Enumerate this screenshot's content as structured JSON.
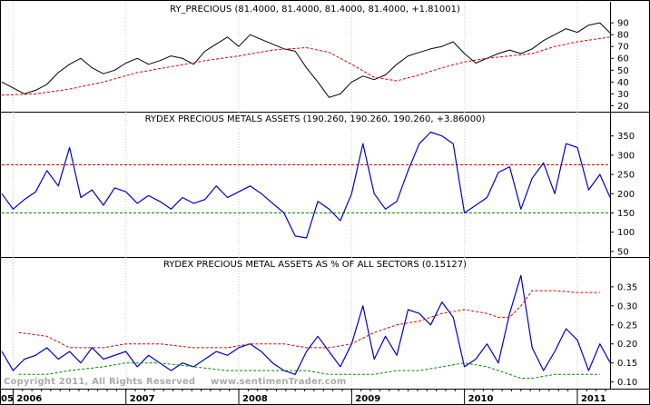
{
  "copyright": "Copyright 2011, All Rights Reserved",
  "watermark": "www.sentimenTrader.com",
  "colors": {
    "series": "#0000cc",
    "price": "#000000",
    "upper_band": "#dd0000",
    "lower_band": "#008800",
    "grid": "#cccccc",
    "frame": "#000000"
  },
  "chart_data": [
    {
      "type": "line",
      "title": "RY_PRECIOUS (81.4000, 81.4000, 81.4000, 81.4000, +1.81001)",
      "xlabel": "",
      "ylabel": "",
      "x_ticks": [
        "05",
        "2006",
        "2007",
        "2008",
        "2009",
        "2010",
        "2011"
      ],
      "x_range": [
        2005.9,
        2011.29
      ],
      "ylim": [
        18,
        97
      ],
      "y_ticks": [
        20,
        30,
        40,
        50,
        60,
        70,
        80,
        90
      ],
      "series": [
        {
          "style": "price",
          "x": [
            2005.9,
            2006.0,
            2006.1,
            2006.2,
            2006.3,
            2006.4,
            2006.5,
            2006.6,
            2006.7,
            2006.8,
            2006.9,
            2007.0,
            2007.1,
            2007.2,
            2007.3,
            2007.4,
            2007.5,
            2007.6,
            2007.7,
            2007.8,
            2007.9,
            2008.0,
            2008.1,
            2008.2,
            2008.3,
            2008.4,
            2008.5,
            2008.6,
            2008.7,
            2008.8,
            2008.9,
            2009.0,
            2009.1,
            2009.2,
            2009.3,
            2009.4,
            2009.5,
            2009.6,
            2009.7,
            2009.8,
            2009.9,
            2010.0,
            2010.1,
            2010.2,
            2010.3,
            2010.4,
            2010.5,
            2010.6,
            2010.7,
            2010.8,
            2010.9,
            2011.0,
            2011.1,
            2011.2,
            2011.29
          ],
          "y": [
            40,
            35,
            30,
            33,
            38,
            48,
            55,
            60,
            52,
            47,
            50,
            56,
            60,
            55,
            58,
            62,
            60,
            55,
            66,
            72,
            78,
            70,
            80,
            76,
            72,
            68,
            66,
            52,
            40,
            27,
            30,
            40,
            45,
            42,
            46,
            55,
            62,
            65,
            68,
            70,
            74,
            64,
            56,
            60,
            64,
            67,
            64,
            68,
            75,
            80,
            85,
            82,
            88,
            90,
            81.4
          ]
        },
        {
          "style": "moving-average",
          "x": [
            2005.9,
            2006.2,
            2006.5,
            2006.8,
            2007.1,
            2007.4,
            2007.7,
            2008.0,
            2008.3,
            2008.6,
            2008.8,
            2009.0,
            2009.2,
            2009.4,
            2009.6,
            2009.8,
            2010.0,
            2010.2,
            2010.4,
            2010.6,
            2010.8,
            2011.0,
            2011.29
          ],
          "y": [
            29,
            30,
            34,
            40,
            48,
            53,
            58,
            62,
            67,
            69,
            65,
            55,
            44,
            41,
            46,
            52,
            57,
            60,
            62,
            64,
            70,
            74,
            78
          ]
        }
      ]
    },
    {
      "type": "line",
      "title": "RYDEX PRECIOUS METALS ASSETS (190.260, 190.260, 190.260, +3.86000)",
      "xlabel": "",
      "ylabel": "",
      "x_ticks": [
        "05",
        "2006",
        "2007",
        "2008",
        "2009",
        "2010",
        "2011"
      ],
      "x_range": [
        2005.9,
        2011.29
      ],
      "ylim": [
        45,
        380
      ],
      "y_ticks": [
        50,
        100,
        150,
        200,
        250,
        300,
        350
      ],
      "upper_level": 275,
      "lower_level": 150,
      "series": [
        {
          "style": "assets",
          "x": [
            2005.9,
            2006.0,
            2006.1,
            2006.2,
            2006.3,
            2006.4,
            2006.5,
            2006.6,
            2006.7,
            2006.8,
            2006.9,
            2007.0,
            2007.1,
            2007.2,
            2007.3,
            2007.4,
            2007.5,
            2007.6,
            2007.7,
            2007.8,
            2007.9,
            2008.0,
            2008.1,
            2008.2,
            2008.3,
            2008.4,
            2008.5,
            2008.6,
            2008.7,
            2008.8,
            2008.9,
            2009.0,
            2009.1,
            2009.2,
            2009.3,
            2009.4,
            2009.5,
            2009.6,
            2009.7,
            2009.8,
            2009.9,
            2010.0,
            2010.1,
            2010.2,
            2010.3,
            2010.4,
            2010.5,
            2010.6,
            2010.7,
            2010.8,
            2010.9,
            2011.0,
            2011.1,
            2011.2,
            2011.29
          ],
          "y": [
            200,
            160,
            185,
            205,
            260,
            220,
            320,
            190,
            210,
            170,
            215,
            205,
            175,
            195,
            180,
            160,
            190,
            175,
            185,
            220,
            190,
            205,
            220,
            200,
            175,
            150,
            90,
            85,
            180,
            160,
            130,
            200,
            330,
            200,
            160,
            180,
            260,
            330,
            360,
            350,
            330,
            150,
            170,
            190,
            255,
            270,
            160,
            240,
            280,
            200,
            330,
            320,
            210,
            250,
            190.26
          ]
        }
      ]
    },
    {
      "type": "line",
      "title": "RYDEX PRECIOUS METAL ASSETS AS % OF ALL SECTORS (0.15127)",
      "xlabel": "",
      "ylabel": "",
      "x_ticks": [
        "05",
        "2006",
        "2007",
        "2008",
        "2009",
        "2010",
        "2011"
      ],
      "x_range": [
        2005.9,
        2011.29
      ],
      "ylim": [
        0.092,
        0.395
      ],
      "y_ticks": [
        0.1,
        0.15,
        0.2,
        0.25,
        0.3,
        0.35
      ],
      "series": [
        {
          "style": "percent",
          "x": [
            2005.9,
            2006.0,
            2006.1,
            2006.2,
            2006.3,
            2006.4,
            2006.5,
            2006.6,
            2006.7,
            2006.8,
            2006.9,
            2007.0,
            2007.1,
            2007.2,
            2007.3,
            2007.4,
            2007.5,
            2007.6,
            2007.7,
            2007.8,
            2007.9,
            2008.0,
            2008.1,
            2008.2,
            2008.3,
            2008.4,
            2008.5,
            2008.6,
            2008.7,
            2008.8,
            2008.9,
            2009.0,
            2009.1,
            2009.2,
            2009.3,
            2009.4,
            2009.5,
            2009.6,
            2009.7,
            2009.8,
            2009.9,
            2010.0,
            2010.1,
            2010.2,
            2010.3,
            2010.4,
            2010.5,
            2010.6,
            2010.7,
            2010.8,
            2010.9,
            2011.0,
            2011.1,
            2011.2,
            2011.29
          ],
          "y": [
            0.18,
            0.13,
            0.16,
            0.17,
            0.19,
            0.16,
            0.18,
            0.15,
            0.19,
            0.16,
            0.17,
            0.18,
            0.14,
            0.17,
            0.15,
            0.13,
            0.15,
            0.14,
            0.16,
            0.18,
            0.17,
            0.19,
            0.2,
            0.18,
            0.15,
            0.13,
            0.12,
            0.18,
            0.22,
            0.18,
            0.14,
            0.2,
            0.3,
            0.16,
            0.22,
            0.17,
            0.29,
            0.28,
            0.25,
            0.31,
            0.27,
            0.14,
            0.16,
            0.2,
            0.15,
            0.28,
            0.38,
            0.19,
            0.13,
            0.18,
            0.24,
            0.21,
            0.13,
            0.2,
            0.15127
          ]
        },
        {
          "style": "upper-band",
          "x": [
            2006.05,
            2006.3,
            2006.5,
            2006.8,
            2007.0,
            2007.3,
            2007.6,
            2007.9,
            2008.1,
            2008.4,
            2008.6,
            2008.8,
            2009.0,
            2009.2,
            2009.4,
            2009.6,
            2009.8,
            2010.0,
            2010.2,
            2010.3,
            2010.4,
            2010.5,
            2010.6,
            2010.8,
            2011.0,
            2011.2
          ],
          "y": [
            0.23,
            0.22,
            0.19,
            0.19,
            0.2,
            0.2,
            0.19,
            0.19,
            0.2,
            0.2,
            0.19,
            0.19,
            0.2,
            0.23,
            0.25,
            0.26,
            0.28,
            0.29,
            0.28,
            0.27,
            0.27,
            0.3,
            0.34,
            0.34,
            0.335,
            0.335
          ]
        },
        {
          "style": "lower-band",
          "x": [
            2006.05,
            2006.3,
            2006.5,
            2006.8,
            2007.0,
            2007.3,
            2007.6,
            2007.9,
            2008.1,
            2008.4,
            2008.6,
            2008.8,
            2009.0,
            2009.2,
            2009.4,
            2009.6,
            2009.8,
            2010.0,
            2010.2,
            2010.3,
            2010.4,
            2010.5,
            2010.6,
            2010.8,
            2011.0,
            2011.2
          ],
          "y": [
            0.12,
            0.12,
            0.13,
            0.14,
            0.15,
            0.15,
            0.14,
            0.13,
            0.13,
            0.13,
            0.13,
            0.12,
            0.12,
            0.12,
            0.13,
            0.13,
            0.14,
            0.15,
            0.14,
            0.13,
            0.12,
            0.11,
            0.11,
            0.12,
            0.12,
            0.12
          ]
        }
      ]
    }
  ]
}
